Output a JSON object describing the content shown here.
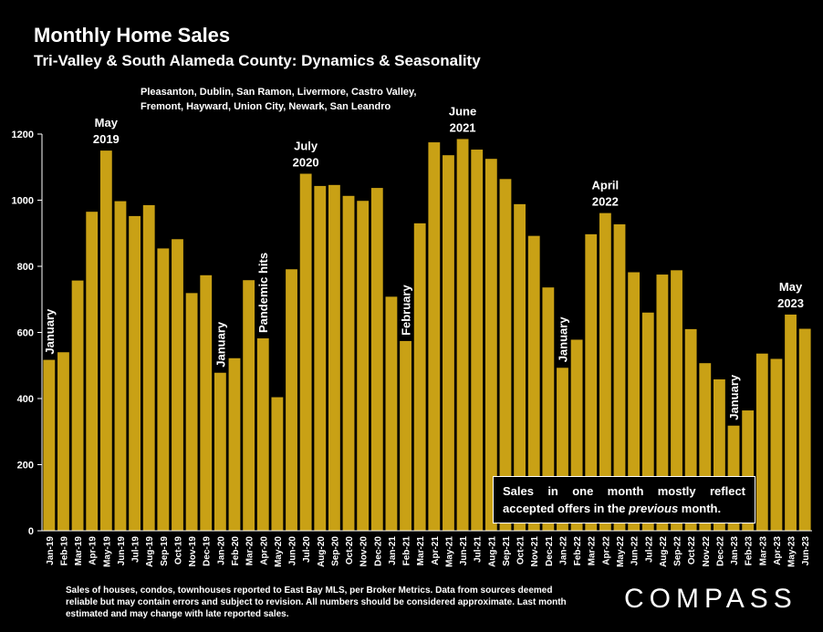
{
  "title": "Monthly Home Sales",
  "subtitle": "Tri-Valley & South Alameda County: Dynamics & Seasonality",
  "region_line1": "Pleasanton, Dublin, San Ramon, Livermore, Castro Valley,",
  "region_line2": "Fremont, Hayward, Union City, Newark, San Leandro",
  "callout_line1": "Sales in one month mostly reflect",
  "callout_line2_pre": "accepted offers in the ",
  "callout_line2_em": "previous",
  "callout_line2_post": " month.",
  "footnote": "Sales of houses, condos, townhouses reported to East Bay MLS, per Broker Metrics. Data from sources deemed reliable but may contain errors and subject to revision. All numbers should be considered approximate.  Last month estimated and may change with late reported sales.",
  "logo": "COMPASS",
  "colors": {
    "bar": "#c9a115",
    "background": "#000000",
    "text": "#ffffff"
  },
  "chart_data": {
    "type": "bar",
    "title": "Monthly Home Sales",
    "ylim": [
      0,
      1200
    ],
    "yticks": [
      0,
      200,
      400,
      600,
      800,
      1000,
      1200
    ],
    "grid": false,
    "categories": [
      "Jan-19",
      "Feb-19",
      "Mar-19",
      "Apr-19",
      "May-19",
      "Jun-19",
      "Jul-19",
      "Aug-19",
      "Sep-19",
      "Oct-19",
      "Nov-19",
      "Dec-19",
      "Jan-20",
      "Feb-20",
      "Mar-20",
      "Apr-20",
      "May-20",
      "Jun-20",
      "Jul-20",
      "Aug-20",
      "Sep-20",
      "Oct-20",
      "Nov-20",
      "Dec-20",
      "Jan-21",
      "Feb-21",
      "Mar-21",
      "Apr-21",
      "May-21",
      "Jun-21",
      "Jul-21",
      "Aug-21",
      "Sep-21",
      "Oct-21",
      "Nov-21",
      "Dec-21",
      "Jan-22",
      "Feb-22",
      "Mar-22",
      "Apr-22",
      "May-22",
      "Jun-22",
      "Jul-22",
      "Aug-22",
      "Sep-22",
      "Oct-22",
      "Nov-22",
      "Dec-22",
      "Jan-23",
      "Feb-23",
      "Mar-23",
      "Apr-23",
      "May-23",
      "Jun-23"
    ],
    "values": [
      517,
      540,
      757,
      965,
      1150,
      997,
      952,
      985,
      854,
      882,
      719,
      773,
      478,
      522,
      758,
      582,
      404,
      791,
      1080,
      1043,
      1046,
      1013,
      998,
      1037,
      708,
      574,
      930,
      1175,
      1136,
      1185,
      1153,
      1125,
      1064,
      988,
      892,
      736,
      493,
      578,
      897,
      961,
      927,
      782,
      660,
      775,
      788,
      610,
      507,
      458,
      318,
      364,
      536,
      520,
      654,
      611
    ],
    "annotations": [
      {
        "text": [
          "January"
        ],
        "index": 0,
        "rotate": true
      },
      {
        "text": [
          "May",
          "2019"
        ],
        "index": 4,
        "rotate": false
      },
      {
        "text": [
          "January"
        ],
        "index": 12,
        "rotate": true
      },
      {
        "text": [
          "Pandemic hits"
        ],
        "index": 15,
        "rotate": true
      },
      {
        "text": [
          "July",
          "2020"
        ],
        "index": 18,
        "rotate": false
      },
      {
        "text": [
          "February"
        ],
        "index": 25,
        "rotate": true
      },
      {
        "text": [
          "June",
          "2021"
        ],
        "index": 29,
        "rotate": false
      },
      {
        "text": [
          "January"
        ],
        "index": 36,
        "rotate": true
      },
      {
        "text": [
          "April",
          "2022"
        ],
        "index": 39,
        "rotate": false
      },
      {
        "text": [
          "January"
        ],
        "index": 48,
        "rotate": true
      },
      {
        "text": [
          "May",
          "2023"
        ],
        "index": 52,
        "rotate": false
      }
    ]
  }
}
